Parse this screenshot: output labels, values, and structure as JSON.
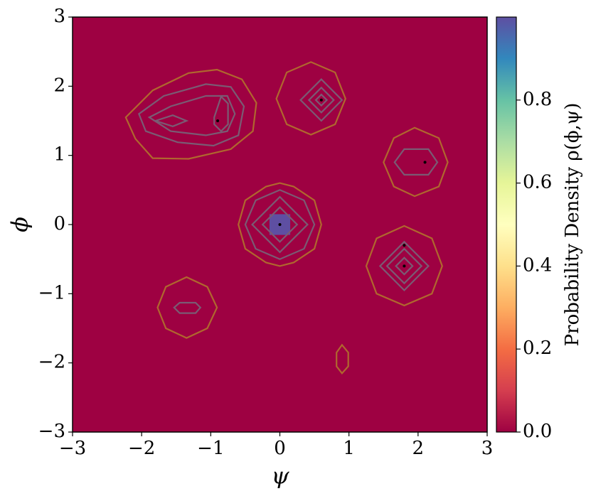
{
  "chart_data": {
    "type": "heatmap",
    "xlabel": "ψ",
    "ylabel": "ϕ",
    "xlim": [
      -3,
      3
    ],
    "ylim": [
      -3,
      3
    ],
    "xticks": [
      {
        "value": -3,
        "label": "−3"
      },
      {
        "value": -2,
        "label": "−2"
      },
      {
        "value": -1,
        "label": "−1"
      },
      0,
      1,
      2,
      3
    ],
    "yticks": [
      {
        "value": -3,
        "label": "−3"
      },
      {
        "value": -2,
        "label": "−2"
      },
      {
        "value": -1,
        "label": "−1"
      },
      0,
      1,
      2,
      3
    ],
    "colormap": [
      "#9e0142",
      "#d53e4f",
      "#f46d43",
      "#fdae61",
      "#fee08b",
      "#ffffbf",
      "#e6f598",
      "#abdda4",
      "#66c2a5",
      "#3288bd",
      "#5e4fa2"
    ],
    "heatmap": {
      "background": 0,
      "cells": [
        {
          "x": [
            -0.15,
            0.15
          ],
          "y": [
            -0.15,
            0.15
          ],
          "value": 1
        }
      ]
    },
    "contours": [
      {
        "level": 0.05,
        "color": "#b0672e",
        "rings": [
          {
            "x": [
              -0.6,
              -0.5,
              -0.2,
              0,
              0.2,
              0.5,
              0.6,
              0.5,
              0.2,
              0,
              -0.2,
              -0.5
            ],
            "y": [
              0,
              0.35,
              0.55,
              0.6,
              0.55,
              0.35,
              0,
              -0.35,
              -0.55,
              -0.6,
              -0.55,
              -0.35
            ]
          },
          {
            "x": [
              -0.05,
              0.1,
              0.45,
              0.8,
              0.95,
              0.8,
              0.45,
              0.1
            ],
            "y": [
              1.82,
              2.2,
              2.35,
              2.2,
              1.82,
              1.45,
              1.3,
              1.45
            ]
          },
          {
            "x": [
              1.5,
              1.65,
              1.95,
              2.3,
              2.43,
              2.3,
              1.95,
              1.65
            ],
            "y": [
              0.9,
              1.25,
              1.4,
              1.25,
              0.9,
              0.55,
              0.41,
              0.55
            ]
          },
          {
            "x": [
              1.25,
              1.4,
              1.8,
              2.2,
              2.35,
              2.2,
              1.8,
              1.4
            ],
            "y": [
              -0.6,
              -0.2,
              -0.02,
              -0.2,
              -0.6,
              -1.0,
              -1.17,
              -1.0
            ]
          },
          {
            "x": [
              -1.77,
              -1.65,
              -1.35,
              -1.05,
              -0.91,
              -1.05,
              -1.35,
              -1.65
            ],
            "y": [
              -1.2,
              -0.9,
              -0.76,
              -0.9,
              -1.2,
              -1.5,
              -1.64,
              -1.5
            ]
          },
          {
            "x": [
              0.82,
              0.9,
              0.99,
              0.99,
              0.9,
              0.82
            ],
            "y": [
              -1.85,
              -1.74,
              -1.85,
              -2.05,
              -2.15,
              -2.05
            ]
          },
          {
            "x": [
              -2.23,
              -1.84,
              -1.32,
              -0.91,
              -0.55,
              -0.34,
              -0.39,
              -0.71,
              -1.32,
              -1.84,
              -2.09
            ],
            "y": [
              1.55,
              1.94,
              2.19,
              2.24,
              2.1,
              1.76,
              1.35,
              1.09,
              0.95,
              0.96,
              1.24
            ]
          }
        ]
      },
      {
        "level": 0.1,
        "color": "#7a5b73",
        "rings": [
          {
            "x": [
              -0.5,
              -0.35,
              0,
              0.35,
              0.5,
              0.35,
              0,
              -0.35
            ],
            "y": [
              0,
              0.35,
              0.5,
              0.35,
              0,
              -0.35,
              -0.5,
              -0.35
            ]
          },
          {
            "x": [
              0.3,
              0.6,
              0.9,
              0.6
            ],
            "y": [
              1.8,
              2.1,
              1.8,
              1.5
            ]
          },
          {
            "x": [
              1.66,
              1.8,
              2.15,
              2.28,
              2.15,
              1.8
            ],
            "y": [
              0.9,
              1.09,
              1.09,
              0.9,
              0.72,
              0.72
            ]
          },
          {
            "x": [
              1.45,
              1.8,
              2.15,
              1.8
            ],
            "y": [
              -0.6,
              -0.25,
              -0.6,
              -0.95
            ]
          },
          {
            "x": [
              -1.53,
              -1.45,
              -1.22,
              -1.15,
              -1.22,
              -1.45
            ],
            "y": [
              -1.2,
              -1.13,
              -1.13,
              -1.2,
              -1.28,
              -1.28
            ]
          },
          {
            "x": [
              -2.04,
              -1.68,
              -1.07,
              -0.71,
              -0.52,
              -0.6,
              -0.96,
              -1.48,
              -1.94
            ],
            "y": [
              1.6,
              1.86,
              2.03,
              1.99,
              1.71,
              1.29,
              1.14,
              1.19,
              1.35
            ]
          }
        ]
      },
      {
        "level": 0.2,
        "color": "#7a5b73",
        "rings": [
          {
            "x": [
              -0.4,
              0,
              0.4,
              0
            ],
            "y": [
              0,
              0.4,
              0,
              -0.4
            ]
          },
          {
            "x": [
              0.42,
              0.6,
              0.78,
              0.6
            ],
            "y": [
              1.8,
              1.98,
              1.8,
              1.62
            ]
          },
          {
            "x": [
              1.55,
              1.8,
              2.05,
              1.8
            ],
            "y": [
              -0.6,
              -0.35,
              -0.6,
              -0.85
            ]
          },
          {
            "x": [
              -1.89,
              -1.58,
              -1.07,
              -0.76,
              -0.65,
              -0.76,
              -1.07,
              -1.58
            ],
            "y": [
              1.55,
              1.71,
              1.86,
              1.86,
              1.6,
              1.35,
              1.29,
              1.35
            ]
          }
        ]
      },
      {
        "level": 0.3,
        "color": "#7a5b73",
        "rings": [
          {
            "x": [
              -0.25,
              0,
              0.25,
              0
            ],
            "y": [
              0,
              0.25,
              0,
              -0.25
            ]
          },
          {
            "x": [
              0.52,
              0.6,
              0.68,
              0.6
            ],
            "y": [
              1.8,
              1.88,
              1.8,
              1.72
            ]
          },
          {
            "x": [
              1.68,
              1.8,
              1.92,
              1.8
            ],
            "y": [
              -0.6,
              -0.48,
              -0.6,
              -0.72
            ]
          },
          {
            "x": [
              -1.8,
              -1.55,
              -1.35,
              -1.55
            ],
            "y": [
              1.5,
              1.58,
              1.5,
              1.42
            ]
          },
          {
            "x": [
              -0.95,
              -0.85,
              -0.75,
              -0.75,
              -0.85,
              -0.95
            ],
            "y": [
              1.55,
              1.85,
              1.75,
              1.45,
              1.35,
              1.45
            ]
          }
        ]
      }
    ],
    "points": {
      "color": "#000000",
      "x": [
        -0.9,
        0.6,
        2.1,
        0,
        1.8,
        1.8
      ],
      "y": [
        1.5,
        1.8,
        0.9,
        0,
        -0.3,
        -0.6
      ]
    },
    "colorbar": {
      "label": "Probability Density ρ(ϕ,ψ)",
      "lim": [
        0,
        1
      ],
      "ticks": [
        {
          "value": 0,
          "label": "0.0"
        },
        {
          "value": 0.2,
          "label": "0.2"
        },
        {
          "value": 0.4,
          "label": "0.4"
        },
        {
          "value": 0.6,
          "label": "0.6"
        },
        {
          "value": 0.8,
          "label": "0.8"
        }
      ]
    }
  }
}
